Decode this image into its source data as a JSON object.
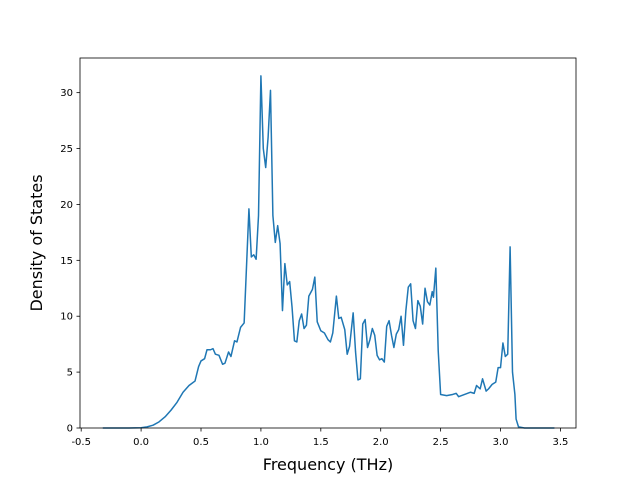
{
  "chart_data": {
    "type": "line",
    "x_label": "Frequency (THz)",
    "y_label": "Density of States",
    "x": [
      -0.32,
      -0.1,
      0.0,
      0.05,
      0.1,
      0.15,
      0.2,
      0.25,
      0.3,
      0.35,
      0.4,
      0.45,
      0.48,
      0.5,
      0.53,
      0.55,
      0.58,
      0.6,
      0.62,
      0.65,
      0.68,
      0.7,
      0.73,
      0.75,
      0.78,
      0.8,
      0.83,
      0.86,
      0.9,
      0.92,
      0.94,
      0.96,
      0.98,
      1.0,
      1.02,
      1.04,
      1.06,
      1.08,
      1.1,
      1.12,
      1.14,
      1.16,
      1.18,
      1.2,
      1.22,
      1.24,
      1.26,
      1.28,
      1.3,
      1.32,
      1.34,
      1.36,
      1.38,
      1.4,
      1.43,
      1.45,
      1.47,
      1.5,
      1.53,
      1.56,
      1.58,
      1.6,
      1.63,
      1.65,
      1.67,
      1.7,
      1.72,
      1.74,
      1.77,
      1.79,
      1.81,
      1.83,
      1.85,
      1.87,
      1.89,
      1.91,
      1.93,
      1.95,
      1.97,
      1.99,
      2.01,
      2.03,
      2.05,
      2.07,
      2.09,
      2.11,
      2.13,
      2.15,
      2.17,
      2.19,
      2.21,
      2.23,
      2.25,
      2.27,
      2.29,
      2.31,
      2.33,
      2.35,
      2.37,
      2.39,
      2.41,
      2.43,
      2.44,
      2.46,
      2.48,
      2.5,
      2.55,
      2.6,
      2.63,
      2.65,
      2.7,
      2.75,
      2.78,
      2.8,
      2.83,
      2.85,
      2.88,
      2.9,
      2.93,
      2.96,
      2.98,
      3.0,
      3.02,
      3.04,
      3.06,
      3.08,
      3.1,
      3.12,
      3.13,
      3.15,
      3.2,
      3.45
    ],
    "series": [
      {
        "color": "#1f77b4",
        "values": [
          0,
          0,
          0.02,
          0.1,
          0.25,
          0.55,
          1.0,
          1.6,
          2.3,
          3.2,
          3.8,
          4.2,
          5.5,
          6.0,
          6.2,
          7.0,
          7.0,
          7.1,
          6.6,
          6.5,
          5.7,
          5.8,
          6.8,
          6.4,
          7.8,
          7.7,
          9.0,
          9.4,
          19.6,
          15.3,
          15.5,
          15.1,
          19.0,
          31.5,
          25.0,
          23.3,
          26.0,
          30.2,
          19.0,
          16.6,
          18.1,
          16.5,
          10.5,
          14.7,
          12.8,
          13.1,
          10.8,
          7.8,
          7.7,
          9.6,
          10.2,
          8.9,
          9.2,
          11.8,
          12.4,
          13.5,
          9.5,
          8.7,
          8.5,
          7.9,
          7.7,
          8.5,
          11.8,
          9.8,
          9.9,
          8.8,
          6.6,
          7.3,
          10.3,
          6.8,
          4.3,
          4.4,
          9.3,
          9.7,
          7.2,
          7.9,
          8.9,
          8.3,
          6.5,
          6.1,
          6.2,
          5.9,
          9.1,
          9.6,
          8.3,
          7.2,
          8.4,
          8.8,
          10.0,
          7.4,
          10.5,
          12.6,
          12.9,
          9.6,
          8.9,
          11.4,
          10.9,
          9.3,
          12.5,
          11.3,
          11.0,
          12.2,
          11.7,
          14.3,
          6.9,
          3.0,
          2.9,
          3.0,
          3.1,
          2.8,
          3.0,
          3.2,
          3.1,
          3.8,
          3.5,
          4.4,
          3.3,
          3.5,
          3.9,
          4.1,
          5.4,
          5.4,
          7.6,
          6.4,
          6.6,
          16.2,
          5.0,
          3.0,
          0.8,
          0.1,
          0,
          0
        ]
      }
    ],
    "xlim": [
      -0.51,
      3.63
    ],
    "ylim": [
      0,
      33.1
    ],
    "xticks": [
      -0.5,
      {
        "value": 0,
        "label": "0.0"
      },
      0.5,
      {
        "value": 1,
        "label": "1.0"
      },
      1.5,
      {
        "value": 2,
        "label": "2.0"
      },
      2.5,
      {
        "value": 3,
        "label": "3.0"
      },
      3.5
    ],
    "yticks": [
      0,
      5,
      10,
      15,
      20,
      25,
      30
    ],
    "grid": false
  }
}
